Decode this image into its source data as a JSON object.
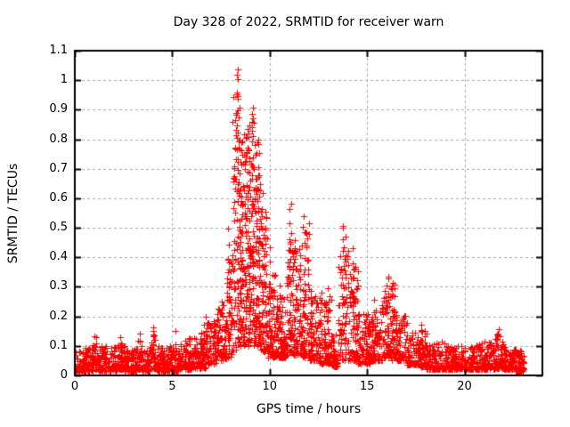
{
  "chart_data": {
    "type": "scatter",
    "title": "Day 328 of 2022, SRMTID for receiver warn",
    "xlabel": "GPS time / hours",
    "ylabel": "SRMTID / TECUs",
    "series_name": "SRMTID",
    "xlim": [
      0,
      24
    ],
    "ylim": [
      0,
      1.1
    ],
    "xticks": [
      {
        "v": 0,
        "label": "0"
      },
      {
        "v": 5,
        "label": "5"
      },
      {
        "v": 10,
        "label": "10"
      },
      {
        "v": 15,
        "label": "15"
      },
      {
        "v": 20,
        "label": "20"
      }
    ],
    "yticks": [
      {
        "v": 0.0,
        "label": "0"
      },
      {
        "v": 0.1,
        "label": "0.1"
      },
      {
        "v": 0.2,
        "label": "0.2"
      },
      {
        "v": 0.3,
        "label": "0.3"
      },
      {
        "v": 0.4,
        "label": "0.4"
      },
      {
        "v": 0.5,
        "label": "0.5"
      },
      {
        "v": 0.6,
        "label": "0.6"
      },
      {
        "v": 0.7,
        "label": "0.7"
      },
      {
        "v": 0.8,
        "label": "0.8"
      },
      {
        "v": 0.9,
        "label": "0.9"
      },
      {
        "v": 1.0,
        "label": "1"
      },
      {
        "v": 1.1,
        "label": "1.1"
      }
    ],
    "grid": "dashed",
    "legend": "none",
    "marker": "plus",
    "marker_size_px": 7,
    "colors": {
      "marker": "#ff0000",
      "grid": "#a8a8a8",
      "axis": "#000000",
      "text": "#000000",
      "background": "#ffffff"
    },
    "data_x_range_hours": [
      0,
      23.05
    ],
    "peak": {
      "x": 8.35,
      "y": 1.02
    },
    "render_seed": 20220328,
    "bands_format": "[x0,x1,n,ylo,yhi,pow] dense background scatter envelope",
    "bands": [
      [
        0.0,
        0.5,
        60,
        0.015,
        0.085,
        2.0
      ],
      [
        0.5,
        0.9,
        50,
        0.015,
        0.095,
        2.0
      ],
      [
        0.9,
        1.2,
        38,
        0.02,
        0.13,
        1.8
      ],
      [
        1.2,
        2.2,
        120,
        0.015,
        0.1,
        2.0
      ],
      [
        2.2,
        2.5,
        38,
        0.02,
        0.115,
        1.8
      ],
      [
        2.5,
        3.2,
        85,
        0.015,
        0.1,
        2.0
      ],
      [
        3.2,
        3.45,
        30,
        0.02,
        0.125,
        1.8
      ],
      [
        3.45,
        3.9,
        55,
        0.015,
        0.095,
        2.0
      ],
      [
        3.9,
        4.15,
        30,
        0.02,
        0.14,
        1.7
      ],
      [
        4.15,
        5.3,
        138,
        0.015,
        0.1,
        2.0
      ],
      [
        5.3,
        6.0,
        85,
        0.02,
        0.125,
        1.9
      ],
      [
        6.0,
        6.7,
        85,
        0.025,
        0.155,
        1.8
      ],
      [
        6.7,
        7.3,
        75,
        0.04,
        0.2,
        1.7
      ],
      [
        7.3,
        7.8,
        65,
        0.05,
        0.24,
        1.6
      ],
      [
        7.8,
        8.1,
        45,
        0.06,
        0.4,
        1.5
      ],
      [
        8.1,
        8.45,
        70,
        0.08,
        0.95,
        1.4
      ],
      [
        8.45,
        8.8,
        80,
        0.1,
        0.82,
        1.4
      ],
      [
        8.8,
        9.2,
        90,
        0.1,
        0.86,
        1.4
      ],
      [
        9.2,
        9.55,
        80,
        0.1,
        0.8,
        1.4
      ],
      [
        9.55,
        9.9,
        62,
        0.08,
        0.58,
        1.6
      ],
      [
        9.9,
        10.35,
        75,
        0.06,
        0.34,
        1.7
      ],
      [
        10.35,
        10.85,
        85,
        0.06,
        0.28,
        1.8
      ],
      [
        10.85,
        11.25,
        65,
        0.07,
        0.52,
        1.9
      ],
      [
        11.25,
        11.65,
        62,
        0.07,
        0.46,
        1.9
      ],
      [
        11.65,
        12.05,
        62,
        0.06,
        0.52,
        1.9
      ],
      [
        12.05,
        12.55,
        72,
        0.05,
        0.27,
        1.9
      ],
      [
        12.55,
        13.15,
        85,
        0.04,
        0.28,
        2.0
      ],
      [
        13.15,
        13.5,
        50,
        0.03,
        0.14,
        2.0
      ],
      [
        13.5,
        14.05,
        65,
        0.05,
        0.46,
        1.8
      ],
      [
        14.05,
        14.55,
        65,
        0.05,
        0.38,
        1.9
      ],
      [
        14.55,
        15.25,
        95,
        0.04,
        0.21,
        2.0
      ],
      [
        15.25,
        15.85,
        85,
        0.05,
        0.24,
        2.0
      ],
      [
        15.85,
        16.45,
        85,
        0.06,
        0.31,
        1.8
      ],
      [
        16.45,
        17.05,
        75,
        0.05,
        0.21,
        2.0
      ],
      [
        17.05,
        17.65,
        72,
        0.035,
        0.15,
        2.0
      ],
      [
        17.65,
        18.05,
        55,
        0.03,
        0.155,
        2.0
      ],
      [
        18.05,
        19.0,
        112,
        0.02,
        0.115,
        2.0
      ],
      [
        19.0,
        20.0,
        118,
        0.02,
        0.1,
        2.0
      ],
      [
        20.0,
        21.0,
        118,
        0.02,
        0.11,
        2.0
      ],
      [
        21.0,
        21.55,
        65,
        0.02,
        0.115,
        2.0
      ],
      [
        21.55,
        21.95,
        50,
        0.025,
        0.14,
        1.8
      ],
      [
        21.95,
        22.6,
        78,
        0.02,
        0.105,
        2.0
      ],
      [
        22.6,
        23.05,
        58,
        0.015,
        0.09,
        2.0
      ]
    ],
    "columns_format": "[x,ybase,ytop,n] vertical wave-crest point strings",
    "columns": [
      [
        1.05,
        0.05,
        0.135,
        4
      ],
      [
        2.35,
        0.05,
        0.12,
        4
      ],
      [
        3.3,
        0.05,
        0.13,
        4
      ],
      [
        3.98,
        0.06,
        0.15,
        3
      ],
      [
        5.15,
        0.05,
        0.145,
        4
      ],
      [
        5.9,
        0.05,
        0.13,
        4
      ],
      [
        6.6,
        0.06,
        0.17,
        5
      ],
      [
        7.1,
        0.07,
        0.2,
        6
      ],
      [
        7.5,
        0.08,
        0.26,
        7
      ],
      [
        7.9,
        0.1,
        0.5,
        9
      ],
      [
        8.2,
        0.12,
        0.72,
        13
      ],
      [
        8.35,
        0.15,
        1.02,
        15
      ],
      [
        8.5,
        0.14,
        0.78,
        13
      ],
      [
        8.62,
        0.15,
        0.7,
        11
      ],
      [
        8.78,
        0.15,
        0.82,
        13
      ],
      [
        8.95,
        0.16,
        0.75,
        11
      ],
      [
        9.1,
        0.15,
        0.89,
        14
      ],
      [
        9.28,
        0.14,
        0.74,
        11
      ],
      [
        9.45,
        0.13,
        0.8,
        12
      ],
      [
        9.6,
        0.12,
        0.62,
        9
      ],
      [
        9.75,
        0.1,
        0.55,
        8
      ],
      [
        10.0,
        0.08,
        0.44,
        7
      ],
      [
        10.55,
        0.08,
        0.3,
        6
      ],
      [
        11.05,
        0.1,
        0.565,
        10
      ],
      [
        11.3,
        0.09,
        0.47,
        8
      ],
      [
        11.55,
        0.09,
        0.42,
        7
      ],
      [
        11.78,
        0.1,
        0.55,
        10
      ],
      [
        12.1,
        0.07,
        0.3,
        6
      ],
      [
        12.6,
        0.06,
        0.28,
        5
      ],
      [
        13.0,
        0.06,
        0.29,
        6
      ],
      [
        13.72,
        0.08,
        0.5,
        10
      ],
      [
        13.85,
        0.08,
        0.46,
        8
      ],
      [
        14.28,
        0.07,
        0.42,
        8
      ],
      [
        14.45,
        0.06,
        0.3,
        6
      ],
      [
        15.4,
        0.06,
        0.25,
        5
      ],
      [
        16.05,
        0.07,
        0.335,
        8
      ],
      [
        16.3,
        0.07,
        0.31,
        7
      ],
      [
        16.5,
        0.06,
        0.22,
        5
      ],
      [
        17.8,
        0.04,
        0.16,
        4
      ],
      [
        21.7,
        0.04,
        0.145,
        4
      ]
    ],
    "outliers": [
      [
        8.33,
        1.02
      ],
      [
        8.36,
        1.005
      ],
      [
        8.32,
        0.952
      ],
      [
        8.35,
        0.936
      ],
      [
        9.08,
        0.886
      ],
      [
        9.14,
        0.871
      ],
      [
        9.11,
        0.858
      ],
      [
        8.29,
        0.832
      ],
      [
        8.27,
        0.814
      ],
      [
        8.93,
        0.82
      ],
      [
        9.42,
        0.798
      ],
      [
        9.35,
        0.79
      ],
      [
        8.45,
        0.8
      ],
      [
        8.55,
        0.79
      ],
      [
        4.0,
        0.152
      ],
      [
        10.15,
        0.27
      ],
      [
        11.02,
        0.565
      ],
      [
        13.78,
        0.5
      ],
      [
        16.08,
        0.335
      ],
      [
        21.72,
        0.143
      ]
    ]
  }
}
